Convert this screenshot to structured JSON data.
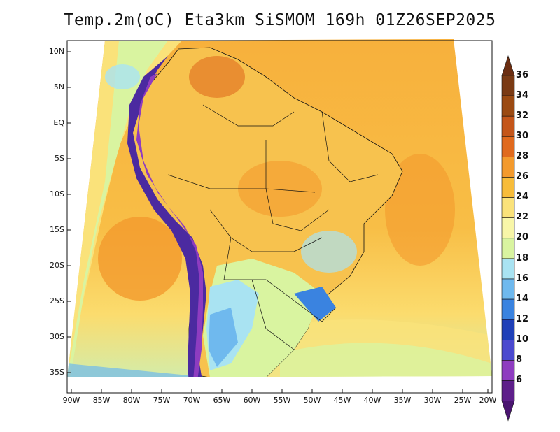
{
  "title": "Temp.2m(oC) Eta3km SiSMOM 169h 01Z26SEP2025",
  "latitude_labels": [
    "10N",
    "5N",
    "EQ",
    "5S",
    "10S",
    "15S",
    "20S",
    "25S",
    "30S",
    "35S"
  ],
  "longitude_labels": [
    "90W",
    "85W",
    "80W",
    "75W",
    "70W",
    "65W",
    "60W",
    "55W",
    "50W",
    "45W",
    "40W",
    "35W",
    "30W",
    "25W",
    "20W"
  ],
  "colorbar": {
    "labels": [
      "36",
      "34",
      "32",
      "30",
      "28",
      "26",
      "24",
      "22",
      "20",
      "18",
      "16",
      "14",
      "12",
      "10",
      "8",
      "6"
    ],
    "colors": [
      "#7a3a14",
      "#9b4a12",
      "#c4561a",
      "#e06a1e",
      "#f39a2d",
      "#f7bc3a",
      "#fae27a",
      "#f8f6a8",
      "#d9f4a0",
      "#a9e3f2",
      "#6fb9ee",
      "#3a83e0",
      "#1f40b8",
      "#4b49cf",
      "#8e3cc0",
      "#5e1f8a"
    ],
    "over_color": "#6b2e12",
    "under_color": "#4a1570"
  },
  "map": {
    "ocean_color": "#f6b344",
    "southern_ocean_color": "#fbdc6e",
    "land_color": "#f6c458",
    "andes_color": "#4b2aa0",
    "boundary_color": "#111111"
  }
}
